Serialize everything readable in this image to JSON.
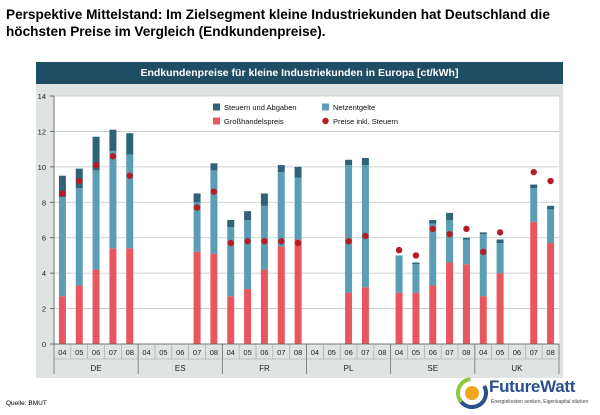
{
  "headline": "Perspektive Mittelstand: Im Zielsegment kleine Industriekunden hat Deutschland die höchsten Preise im Vergleich (Endkundenpreise).",
  "source": "Quelle: BMUT",
  "logo": {
    "name": "FutureWatt",
    "tagline": "Energiekosten senken, Eigenkapital stärken"
  },
  "colors": {
    "steuern": "#2f6478",
    "netz": "#5b9db5",
    "gross": "#e9575e",
    "preis": "#b71c23",
    "header": "#1f4e64",
    "panel": "#dfe4e3"
  },
  "chart_data": {
    "type": "bar",
    "stacked": true,
    "title": "Endkundenpreise für kleine Industriekunden in Europa [ct/kWh]",
    "ylim": [
      0,
      14
    ],
    "yticks": [
      0,
      2,
      4,
      6,
      8,
      10,
      12,
      14
    ],
    "grid": true,
    "legend_position": "top-center",
    "legend": [
      {
        "name": "Steuern und Abgaben",
        "color": "#2f6478",
        "kind": "square"
      },
      {
        "name": "Netzentgelte",
        "color": "#5b9db5",
        "kind": "square"
      },
      {
        "name": "Großhandelspreis",
        "color": "#e9575e",
        "kind": "square"
      },
      {
        "name": "Preise inkl. Steuern",
        "color": "#b71c23",
        "kind": "dot"
      }
    ],
    "groups": [
      {
        "country": "DE",
        "years": [
          "04",
          "05",
          "06",
          "07",
          "08"
        ],
        "gross": [
          2.7,
          3.3,
          4.2,
          5.4,
          5.4
        ],
        "netz": [
          5.6,
          5.5,
          5.6,
          5.5,
          5.3
        ],
        "steuern": [
          1.2,
          1.1,
          1.9,
          1.2,
          1.2
        ],
        "preis": [
          8.5,
          9.2,
          10.1,
          10.6,
          9.5
        ]
      },
      {
        "country": "ES",
        "years": [
          "04",
          "05",
          "06",
          "07",
          "08"
        ],
        "gross": [
          null,
          null,
          null,
          5.2,
          5.1
        ],
        "netz": [
          null,
          null,
          null,
          2.8,
          4.7
        ],
        "steuern": [
          null,
          null,
          null,
          0.5,
          0.4
        ],
        "preis": [
          null,
          null,
          null,
          7.7,
          8.6
        ]
      },
      {
        "country": "FR",
        "years": [
          "04",
          "05",
          "06",
          "07",
          "08"
        ],
        "gross": [
          2.7,
          3.1,
          4.2,
          5.5,
          5.9
        ],
        "netz": [
          3.9,
          3.9,
          3.6,
          4.2,
          3.5
        ],
        "steuern": [
          0.4,
          0.5,
          0.7,
          0.4,
          0.6
        ],
        "preis": [
          5.7,
          5.8,
          5.8,
          5.8,
          5.7
        ]
      },
      {
        "country": "PL",
        "years": [
          "04",
          "05",
          "06",
          "07",
          "08"
        ],
        "gross": [
          null,
          null,
          2.9,
          3.2,
          null
        ],
        "netz": [
          null,
          null,
          7.2,
          6.9,
          null
        ],
        "steuern": [
          null,
          null,
          0.3,
          0.4,
          null
        ],
        "preis": [
          null,
          null,
          5.8,
          6.1,
          null
        ]
      },
      {
        "country": "SE",
        "years": [
          "04",
          "05",
          "06",
          "07",
          "08"
        ],
        "gross": [
          2.9,
          2.9,
          3.3,
          4.6,
          4.5
        ],
        "netz": [
          2.1,
          1.6,
          3.5,
          2.4,
          1.4
        ],
        "steuern": [
          0.0,
          0.1,
          0.2,
          0.4,
          0.1
        ],
        "preis": [
          5.3,
          5.0,
          6.5,
          6.2,
          6.5
        ]
      },
      {
        "country": "UK",
        "years": [
          "04",
          "05",
          "06",
          "07",
          "08"
        ],
        "gross": [
          2.7,
          4.0,
          null,
          6.9,
          5.7
        ],
        "netz": [
          3.5,
          1.7,
          null,
          1.9,
          1.9
        ],
        "steuern": [
          0.1,
          0.2,
          null,
          0.2,
          0.2
        ],
        "preis": [
          5.2,
          6.3,
          null,
          9.7,
          9.2
        ]
      }
    ]
  }
}
